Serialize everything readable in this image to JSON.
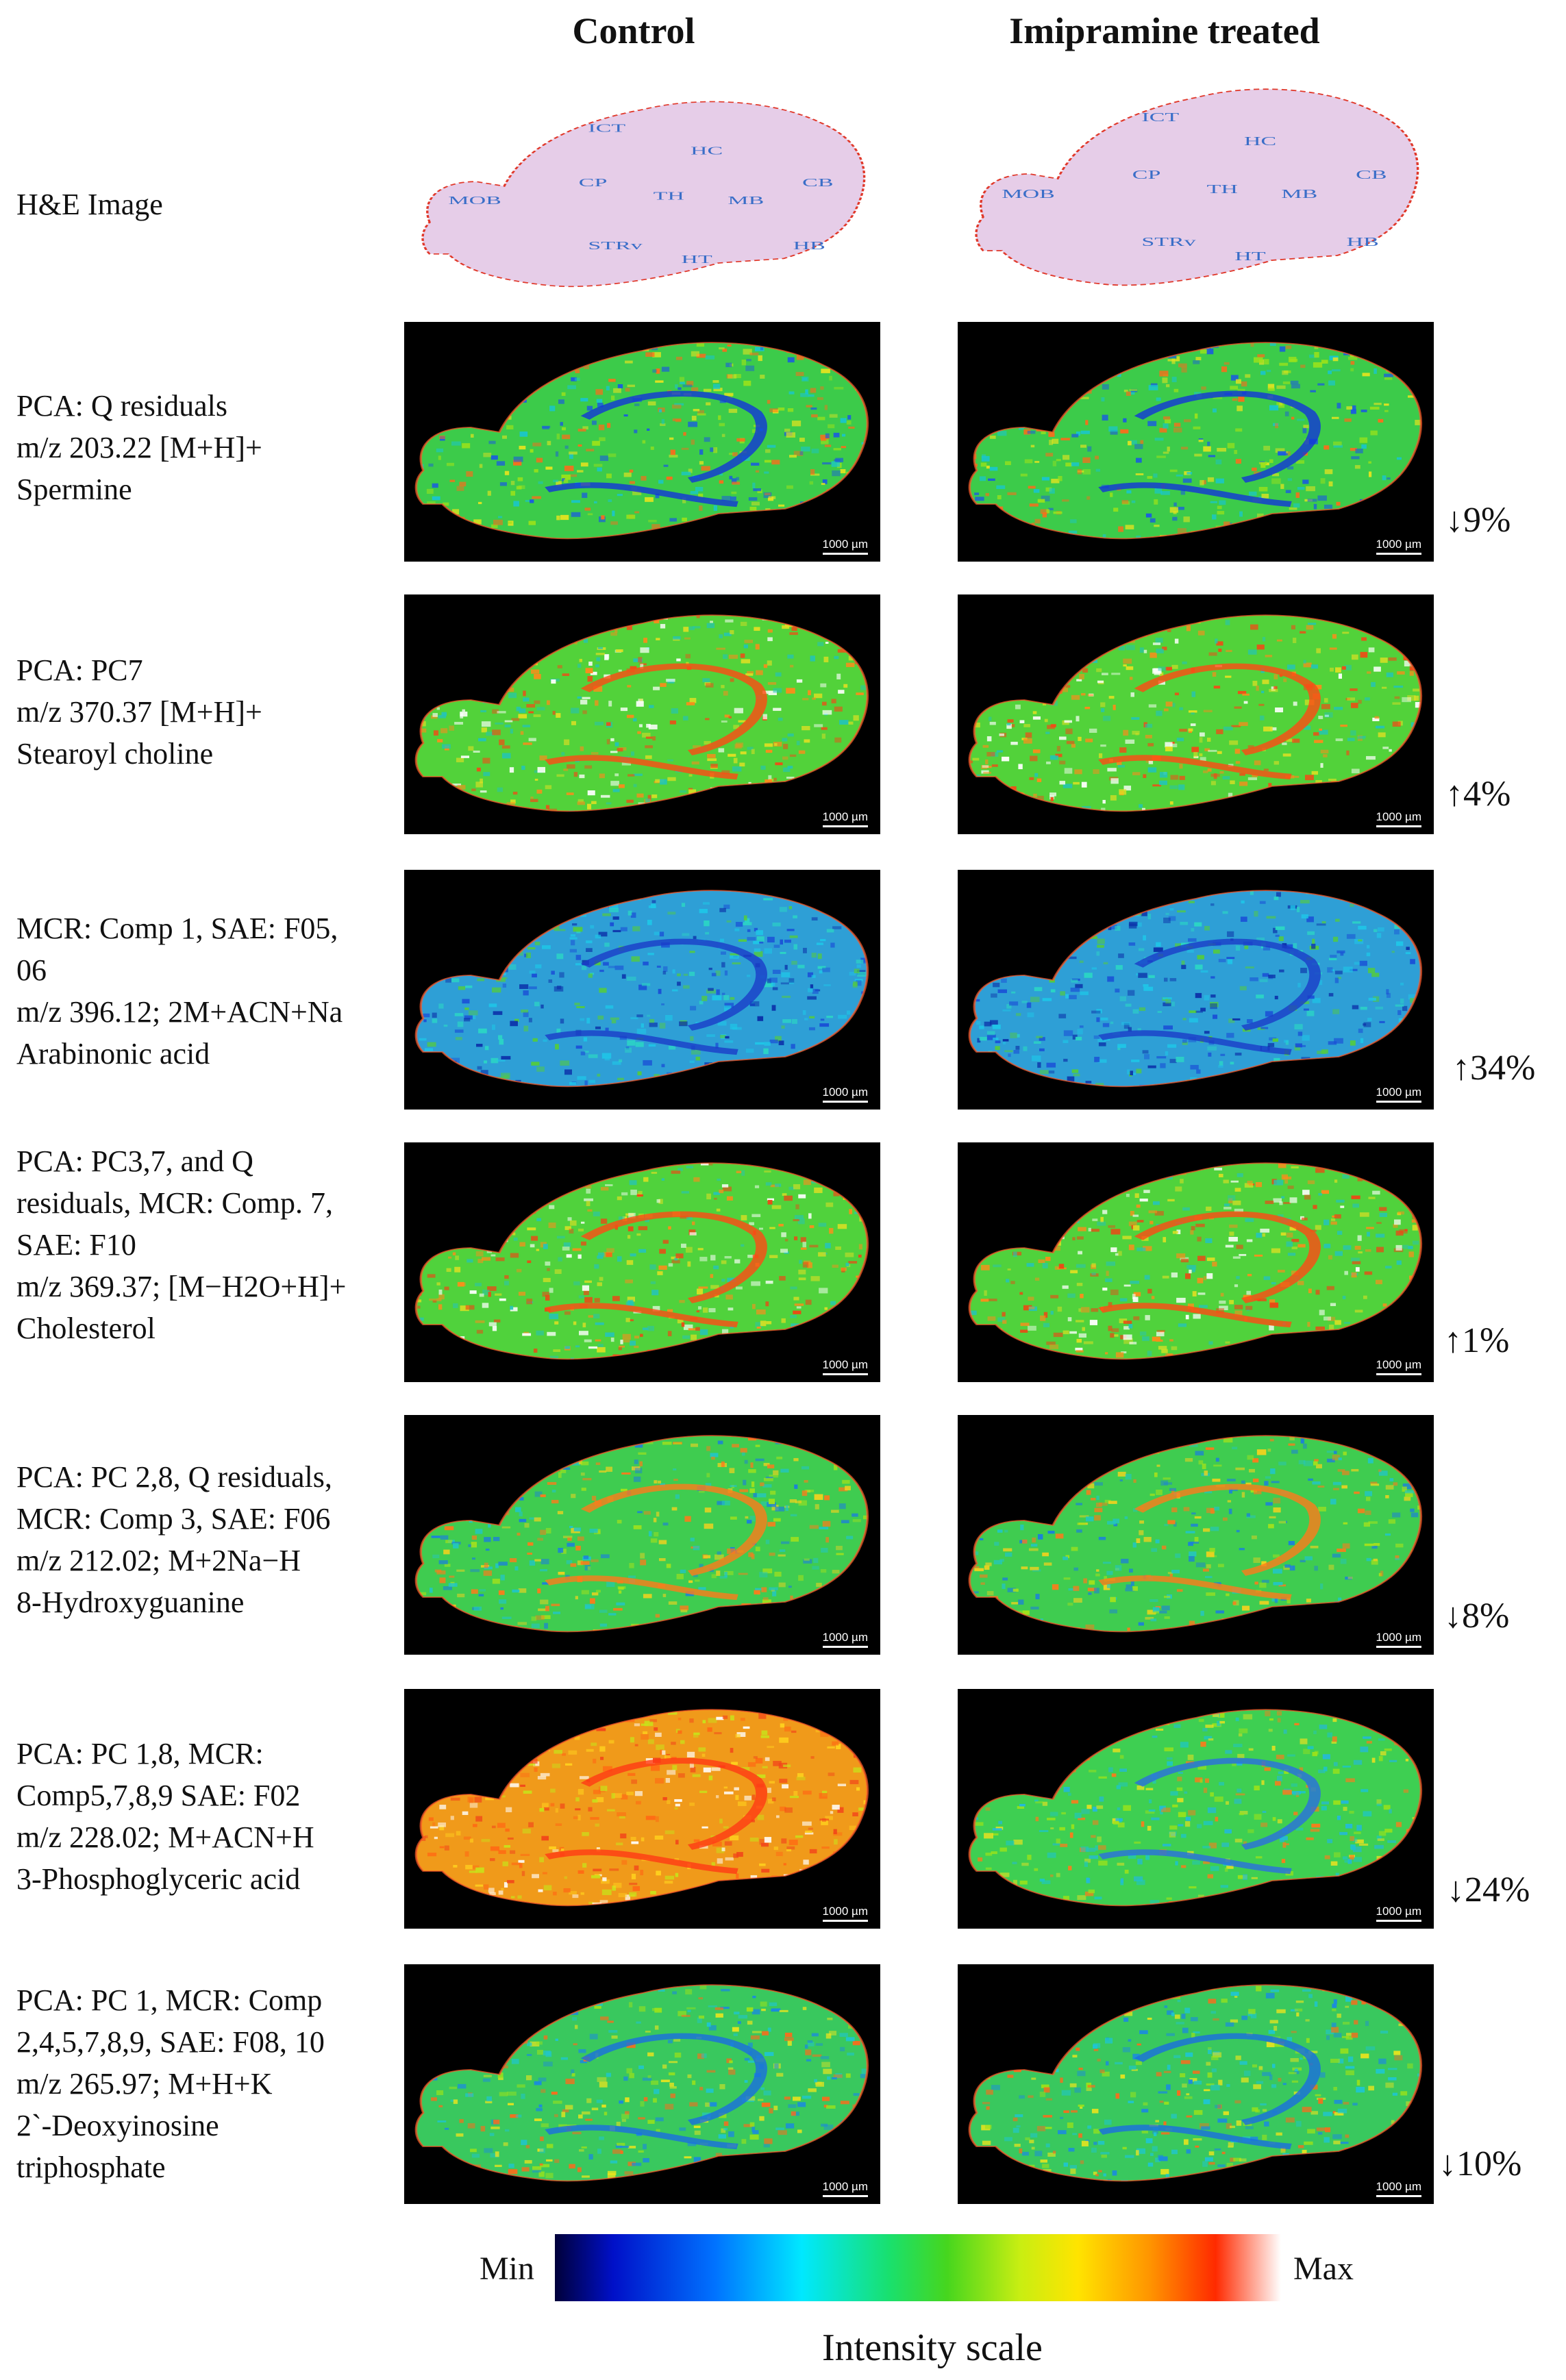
{
  "columns": {
    "control": "Control",
    "treated": "Imipramine treated"
  },
  "he_label": "H&E Image",
  "he_regions_control": [
    "ICT",
    "HC",
    "CP",
    "TH",
    "MB",
    "CB",
    "MOB",
    "STRv",
    "HT",
    "HB"
  ],
  "he_regions_treated": [
    "ICT",
    "HC",
    "CP",
    "TH",
    "MB",
    "CB",
    "MOB",
    "STRv",
    "HT",
    "HB"
  ],
  "scale_bar": "1000 µm",
  "rows": [
    {
      "lines": [
        "PCA: Q residuals",
        "m/z 203.22 [M+H]+",
        "Spermine"
      ],
      "change": "↓9%"
    },
    {
      "lines": [
        "PCA: PC7",
        "m/z 370.37 [M+H]+",
        "Stearoyl choline"
      ],
      "change": "↑4%"
    },
    {
      "lines": [
        "MCR: Comp 1, SAE: F05,",
        "06",
        "m/z 396.12; 2M+ACN+Na",
        "Arabinonic acid"
      ],
      "change": "↑34%"
    },
    {
      "lines": [
        "PCA: PC3,7, and Q",
        "residuals, MCR: Comp. 7,",
        "SAE: F10",
        "m/z 369.37; [M−H2O+H]+",
        "Cholesterol"
      ],
      "change": "↑1%"
    },
    {
      "lines": [
        "PCA: PC 2,8, Q residuals,",
        "MCR: Comp 3, SAE: F06",
        "m/z 212.02; M+2Na−H",
        "8-Hydroxyguanine"
      ],
      "change": "↓8%"
    },
    {
      "lines": [
        "PCA: PC 1,8, MCR:",
        "Comp5,7,8,9 SAE: F02",
        "m/z 228.02; M+ACN+H",
        "3-Phosphoglyceric acid"
      ],
      "change": "↓24%"
    },
    {
      "lines": [
        "PCA: PC 1, MCR: Comp",
        "2,4,5,7,8,9, SAE: F08, 10",
        "m/z 265.97; M+H+K",
        "2`-Deoxyinosine",
        "triphosphate"
      ],
      "change": "↓10%"
    }
  ],
  "colorbar": {
    "min": "Min",
    "max": "Max",
    "title": "Intensity scale"
  }
}
